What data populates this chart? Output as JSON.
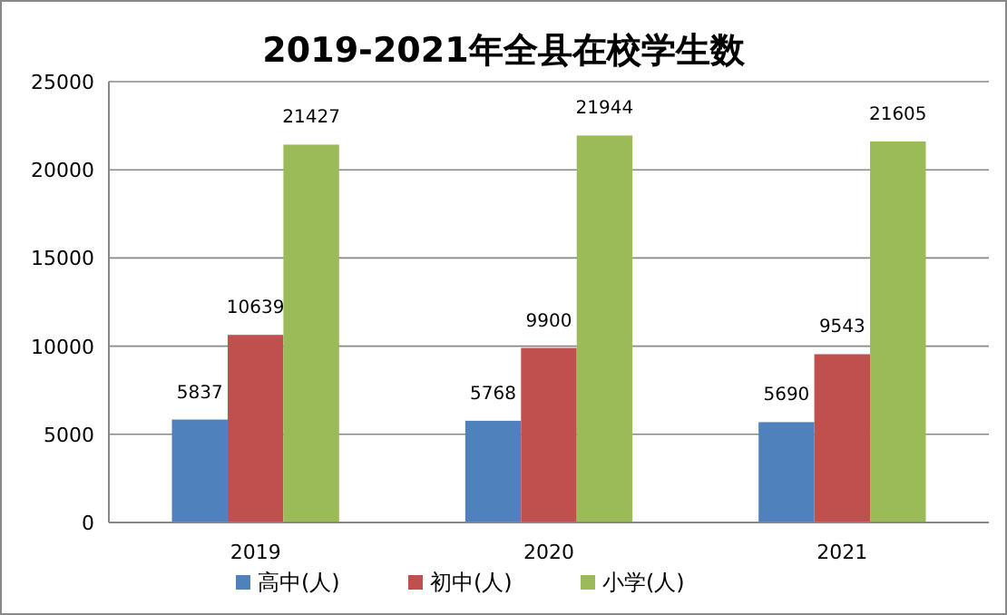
{
  "chart_data": {
    "type": "bar",
    "title": "2019-2021年全县在校学生数",
    "categories": [
      "2019",
      "2020",
      "2021"
    ],
    "series": [
      {
        "name": "高中(人)",
        "color": "#4f81bd",
        "values": [
          5837,
          5768,
          5690
        ]
      },
      {
        "name": "初中(人)",
        "color": "#c0504d",
        "values": [
          10639,
          9900,
          9543
        ]
      },
      {
        "name": "小学(人)",
        "color": "#9bbb59",
        "values": [
          21427,
          21944,
          21605
        ]
      }
    ],
    "ylim": [
      0,
      25000
    ],
    "yticks": [
      0,
      5000,
      10000,
      15000,
      20000,
      25000
    ],
    "grid": "y",
    "legend": "bottom",
    "data_labels": true
  }
}
